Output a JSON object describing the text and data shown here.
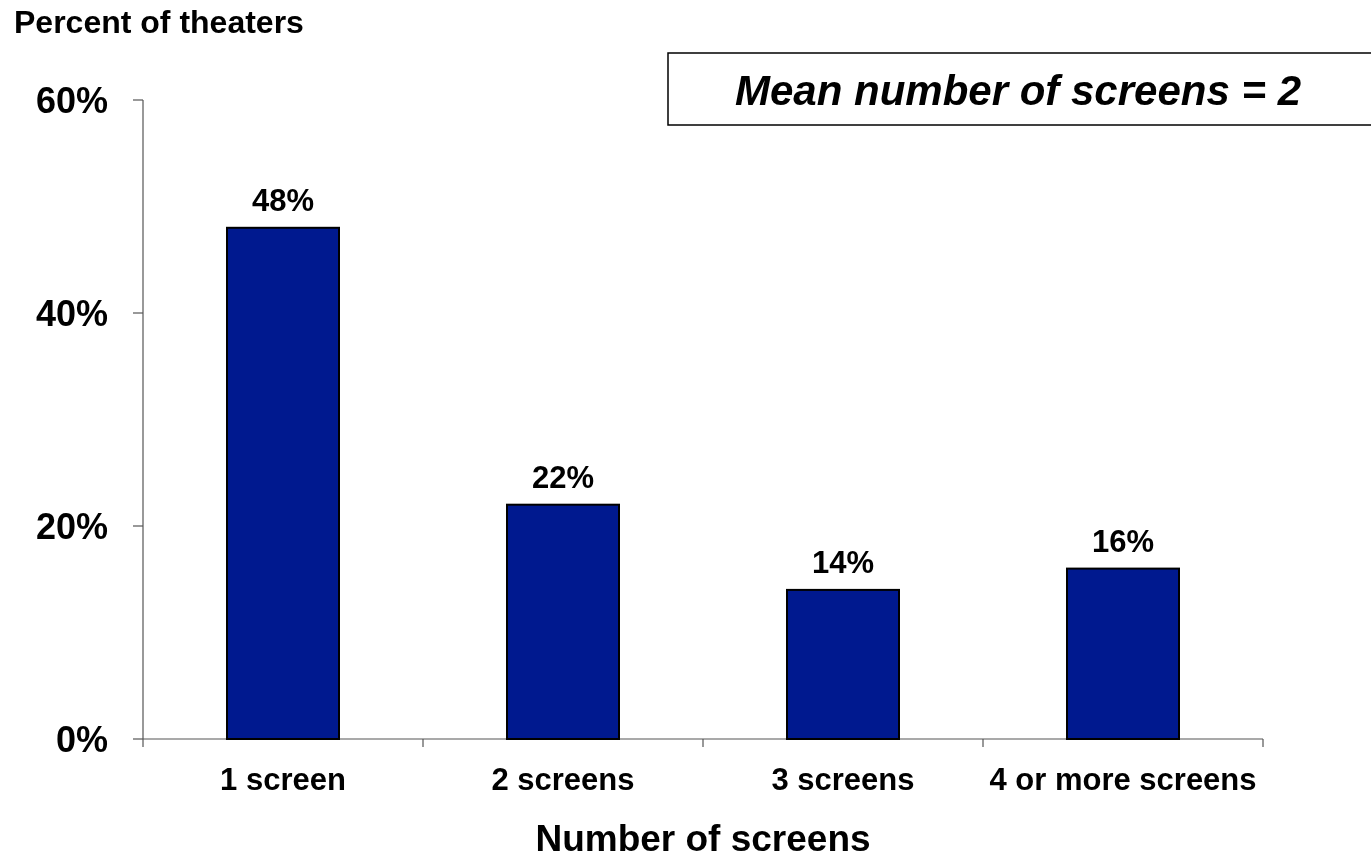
{
  "chart_data": {
    "type": "bar",
    "ylabel": "Percent of theaters",
    "xlabel": "Number of screens",
    "categories": [
      "1 screen",
      "2 screens",
      "3 screens",
      "4 or more screens"
    ],
    "values": [
      48,
      22,
      14,
      16
    ],
    "color": "#00198f",
    "value_labels": [
      "48%",
      "22%",
      "14%",
      "16%"
    ],
    "ylim": [
      0,
      60
    ],
    "yticks": [
      {
        "value": 0,
        "label": "0%"
      },
      {
        "value": 20,
        "label": "20%"
      },
      {
        "value": 40,
        "label": "40%"
      },
      {
        "value": 60,
        "label": "60%"
      }
    ],
    "annotations": [
      "Mean number of screens = 2"
    ]
  }
}
